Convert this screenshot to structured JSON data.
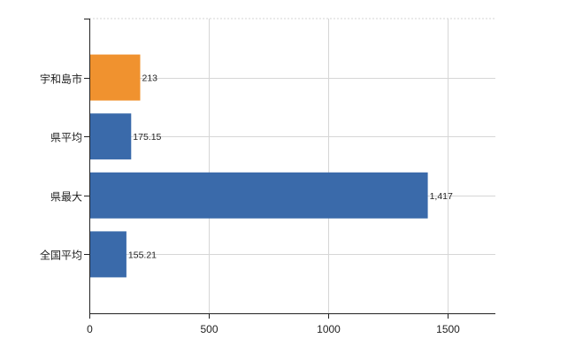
{
  "chart_data": {
    "type": "bar",
    "orientation": "horizontal",
    "categories": [
      "宇和島市",
      "県平均",
      "県最大",
      "全国平均"
    ],
    "values": [
      213,
      175.15,
      1417,
      155.21
    ],
    "value_labels": [
      "213",
      "175.15",
      "1,417",
      "155.21"
    ],
    "bar_colors": [
      "#f0922f",
      "#3a6aaa",
      "#3a6aaa",
      "#3a6aaa"
    ],
    "x_ticks": [
      0,
      500,
      1000,
      1500
    ],
    "x_tick_labels": [
      "0",
      "500",
      "1000",
      "1500"
    ],
    "xlim": [
      0,
      1700
    ],
    "grid": true,
    "title": "",
    "xlabel": "",
    "ylabel": ""
  },
  "colors": {
    "highlight": "#f0922f",
    "bar": "#3a6aaa",
    "grid": "#d6d6d6",
    "axis": "#222222"
  }
}
